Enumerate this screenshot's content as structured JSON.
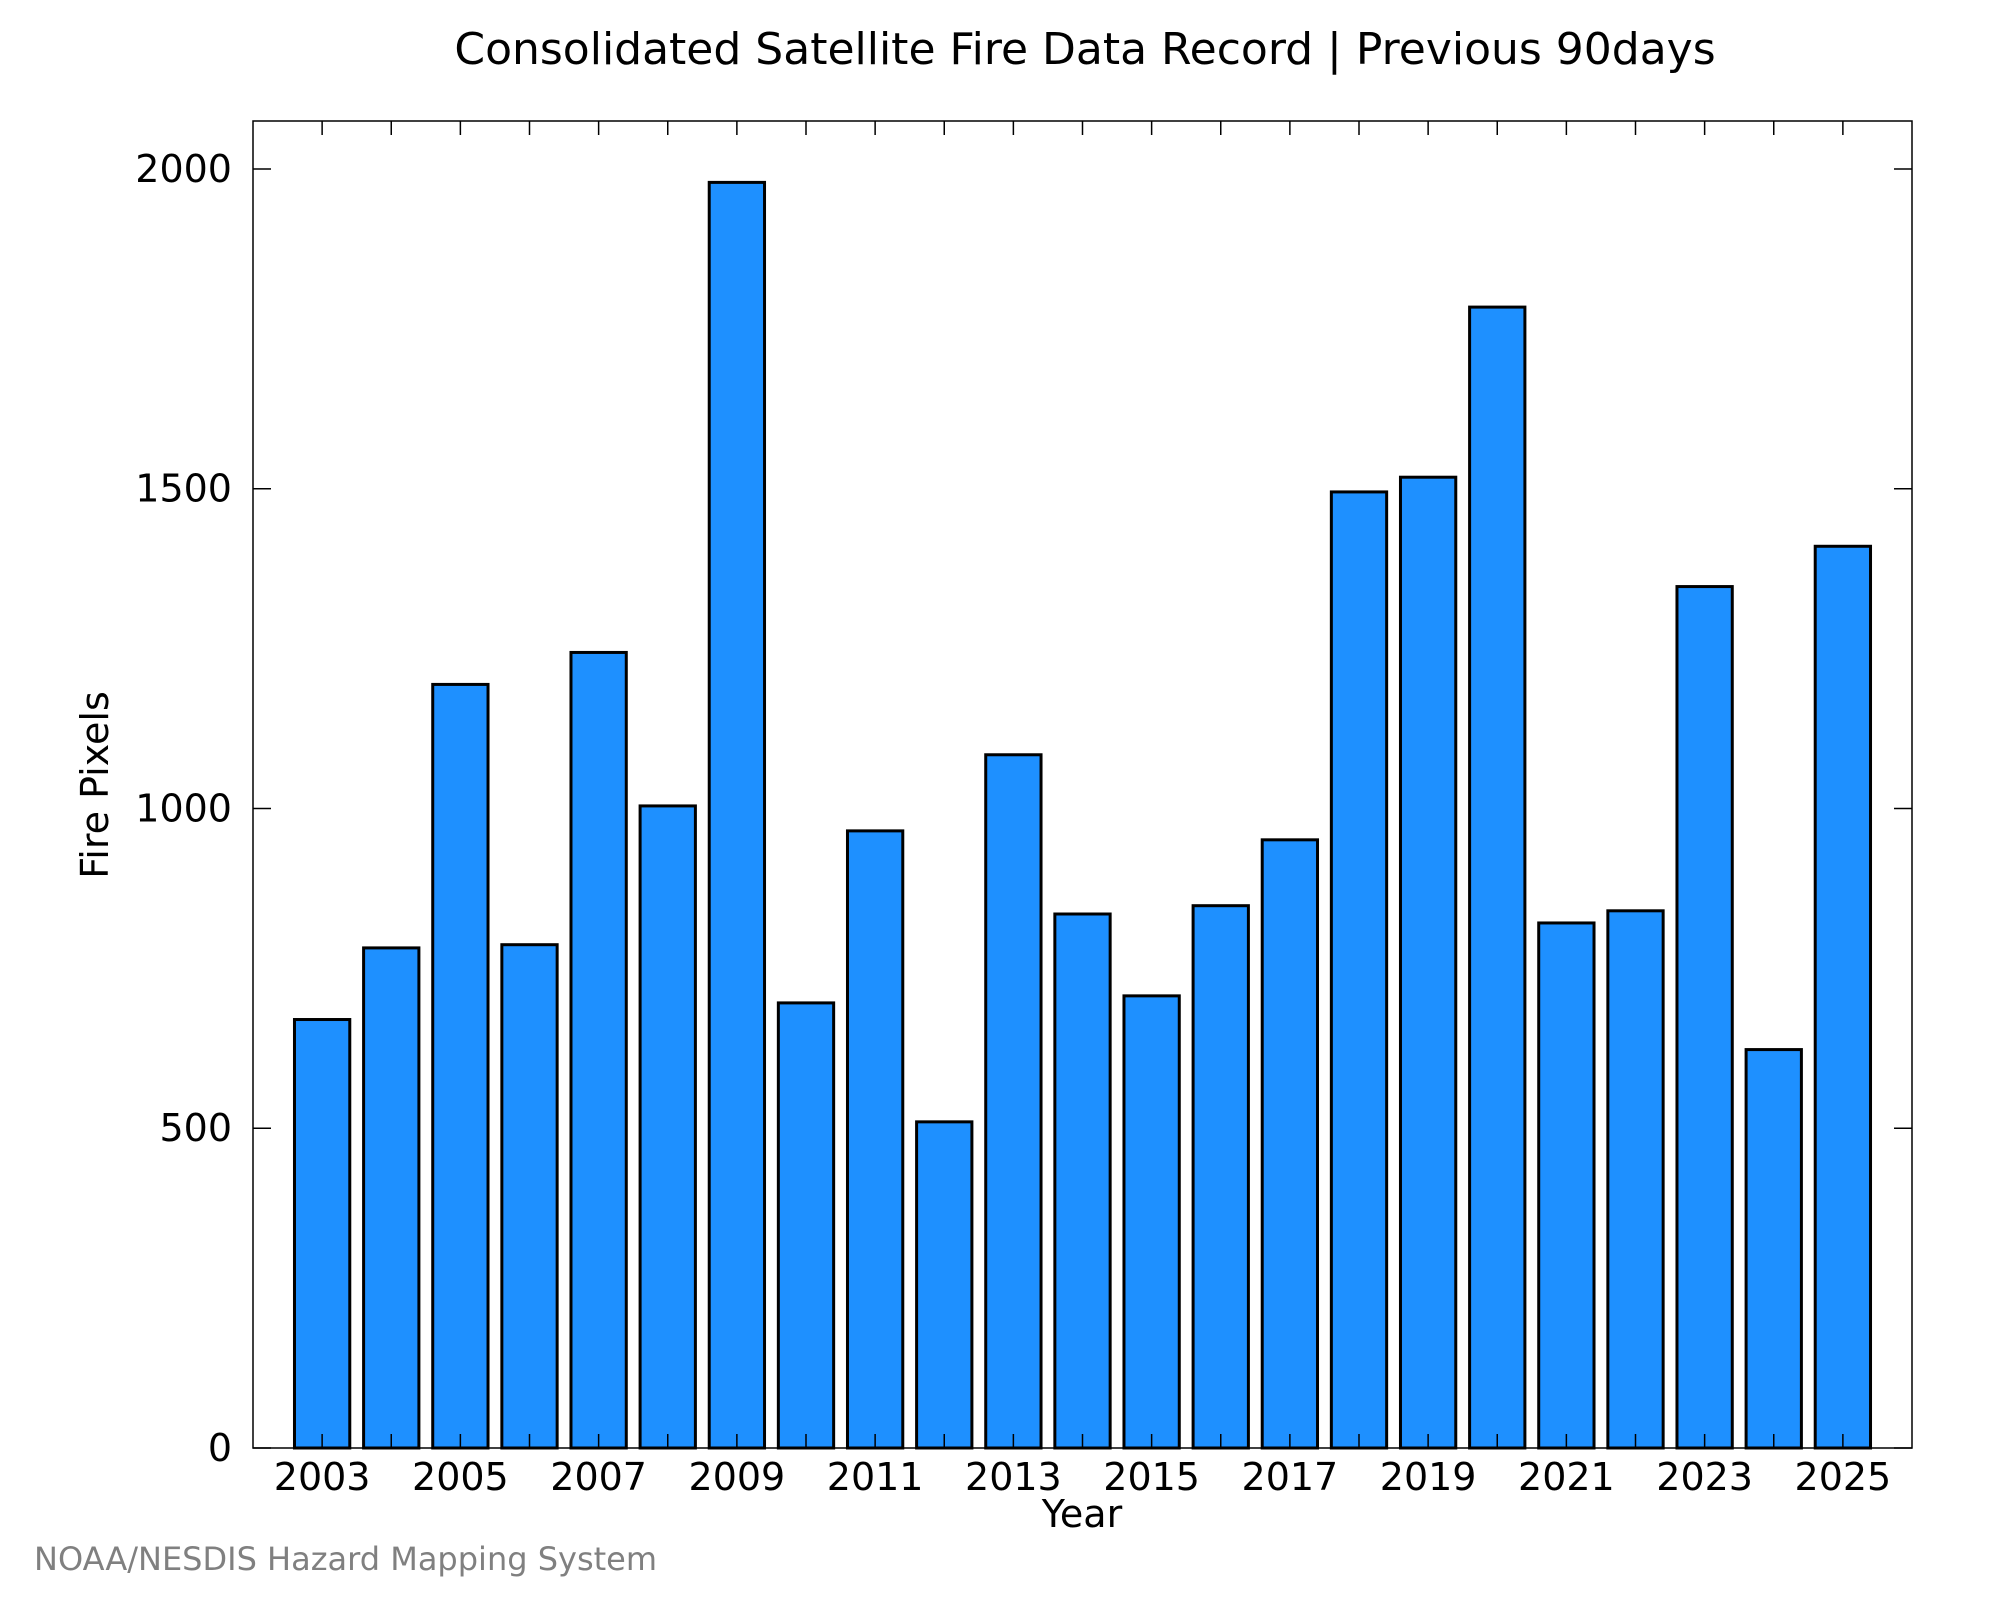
{
  "chart_data": {
    "type": "bar",
    "title": "Consolidated Satellite Fire Data Record | Previous 90days",
    "xlabel": "Year",
    "ylabel": "Fire Pixels",
    "categories": [
      2003,
      2004,
      2005,
      2006,
      2007,
      2008,
      2009,
      2010,
      2011,
      2012,
      2013,
      2014,
      2015,
      2016,
      2017,
      2018,
      2019,
      2020,
      2021,
      2022,
      2023,
      2024,
      2025
    ],
    "values": [
      670,
      782,
      1194,
      787,
      1244,
      1004,
      1979,
      696,
      965,
      510,
      1084,
      835,
      707,
      848,
      951,
      1495,
      1518,
      1784,
      821,
      840,
      1347,
      623,
      1410
    ],
    "x_tick_labels": [
      "2003",
      "2005",
      "2007",
      "2009",
      "2011",
      "2013",
      "2015",
      "2017",
      "2019",
      "2021",
      "2023",
      "2025"
    ],
    "y_tick_labels": [
      "0",
      "500",
      "1000",
      "1500",
      "2000"
    ],
    "ylim": [
      0,
      2075
    ],
    "xlim": [
      2002,
      2026
    ],
    "grid": false,
    "bar_color": "#1e90ff",
    "edge_color": "#000000"
  },
  "credit": "NOAA/NESDIS Hazard Mapping System"
}
